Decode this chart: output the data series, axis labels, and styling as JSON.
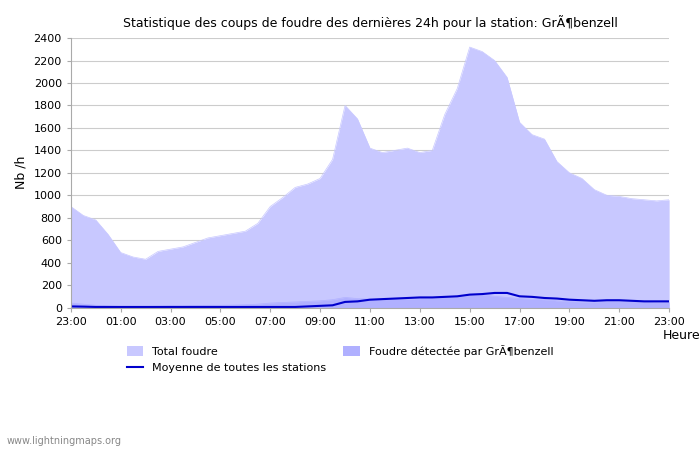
{
  "title": "Statistique des coups de foudre des dernières 24h pour la station: GrÃ¶benzell",
  "ylabel": "Nb /h",
  "xlabel": "Heure",
  "xlim": [
    0,
    24
  ],
  "ylim": [
    0,
    2400
  ],
  "yticks": [
    0,
    200,
    400,
    600,
    800,
    1000,
    1200,
    1400,
    1600,
    1800,
    2000,
    2200,
    2400
  ],
  "xtick_labels": [
    "23:00",
    "01:00",
    "03:00",
    "05:00",
    "07:00",
    "09:00",
    "11:00",
    "13:00",
    "15:00",
    "17:00",
    "19:00",
    "21:00",
    "23:00"
  ],
  "xtick_positions": [
    0,
    2,
    4,
    6,
    8,
    10,
    12,
    14,
    16,
    18,
    20,
    22,
    24
  ],
  "total_foudre_color": "#c8c8ff",
  "detected_foudre_color": "#b0b0ff",
  "moyenne_color": "#0000cc",
  "background_color": "#ffffff",
  "plot_bg_color": "#ffffff",
  "grid_color": "#cccccc",
  "watermark": "www.lightningmaps.org",
  "legend_total": "Total foudre",
  "legend_moyenne": "Moyenne de toutes les stations",
  "legend_detected": "Foudre détectée par GrÃ¶benzell",
  "total_foudre_x": [
    0,
    0.5,
    1,
    1.5,
    2,
    2.5,
    3,
    3.5,
    4,
    4.5,
    5,
    5.5,
    6,
    6.5,
    7,
    7.5,
    8,
    8.5,
    9,
    9.5,
    10,
    10.5,
    11,
    11.5,
    12,
    12.5,
    13,
    13.5,
    14,
    14.5,
    15,
    15.5,
    16,
    16.5,
    17,
    17.5,
    18,
    18.5,
    19,
    19.5,
    20,
    20.5,
    21,
    21.5,
    22,
    22.5,
    23,
    23.5,
    24
  ],
  "total_foudre_y": [
    900,
    820,
    780,
    650,
    490,
    450,
    430,
    500,
    520,
    540,
    580,
    620,
    640,
    660,
    680,
    750,
    900,
    980,
    1070,
    1100,
    1150,
    1320,
    1800,
    1680,
    1420,
    1380,
    1400,
    1420,
    1380,
    1400,
    1720,
    1950,
    2320,
    2280,
    2200,
    2050,
    1650,
    1540,
    1500,
    1300,
    1200,
    1150,
    1050,
    1000,
    990,
    970,
    960,
    950,
    960
  ],
  "detected_foudre_x": [
    0,
    0.5,
    1,
    1.5,
    2,
    2.5,
    3,
    3.5,
    4,
    4.5,
    5,
    5.5,
    6,
    6.5,
    7,
    7.5,
    8,
    8.5,
    9,
    9.5,
    10,
    10.5,
    11,
    11.5,
    12,
    12.5,
    13,
    13.5,
    14,
    14.5,
    15,
    15.5,
    16,
    16.5,
    17,
    17.5,
    18,
    18.5,
    19,
    19.5,
    20,
    20.5,
    21,
    21.5,
    22,
    22.5,
    23,
    23.5,
    24
  ],
  "detected_foudre_y": [
    40,
    30,
    20,
    15,
    10,
    10,
    10,
    12,
    15,
    15,
    18,
    20,
    20,
    22,
    25,
    30,
    40,
    45,
    50,
    55,
    60,
    70,
    90,
    80,
    75,
    70,
    80,
    75,
    80,
    85,
    90,
    95,
    110,
    115,
    100,
    90,
    80,
    75,
    70,
    60,
    55,
    50,
    50,
    55,
    55,
    55,
    55,
    50,
    50
  ],
  "moyenne_x": [
    0,
    0.5,
    1,
    1.5,
    2,
    2.5,
    3,
    3.5,
    4,
    4.5,
    5,
    5.5,
    6,
    6.5,
    7,
    7.5,
    8,
    8.5,
    9,
    9.5,
    10,
    10.5,
    11,
    11.5,
    12,
    12.5,
    13,
    13.5,
    14,
    14.5,
    15,
    15.5,
    16,
    16.5,
    17,
    17.5,
    18,
    18.5,
    19,
    19.5,
    20,
    20.5,
    21,
    21.5,
    22,
    22.5,
    23,
    23.5,
    24
  ],
  "moyenne_y": [
    10,
    8,
    5,
    5,
    5,
    5,
    5,
    5,
    5,
    5,
    5,
    5,
    5,
    5,
    5,
    5,
    5,
    5,
    5,
    10,
    15,
    20,
    50,
    55,
    70,
    75,
    80,
    85,
    90,
    90,
    95,
    100,
    115,
    120,
    130,
    130,
    100,
    95,
    85,
    80,
    70,
    65,
    60,
    65,
    65,
    60,
    55,
    55,
    55
  ]
}
